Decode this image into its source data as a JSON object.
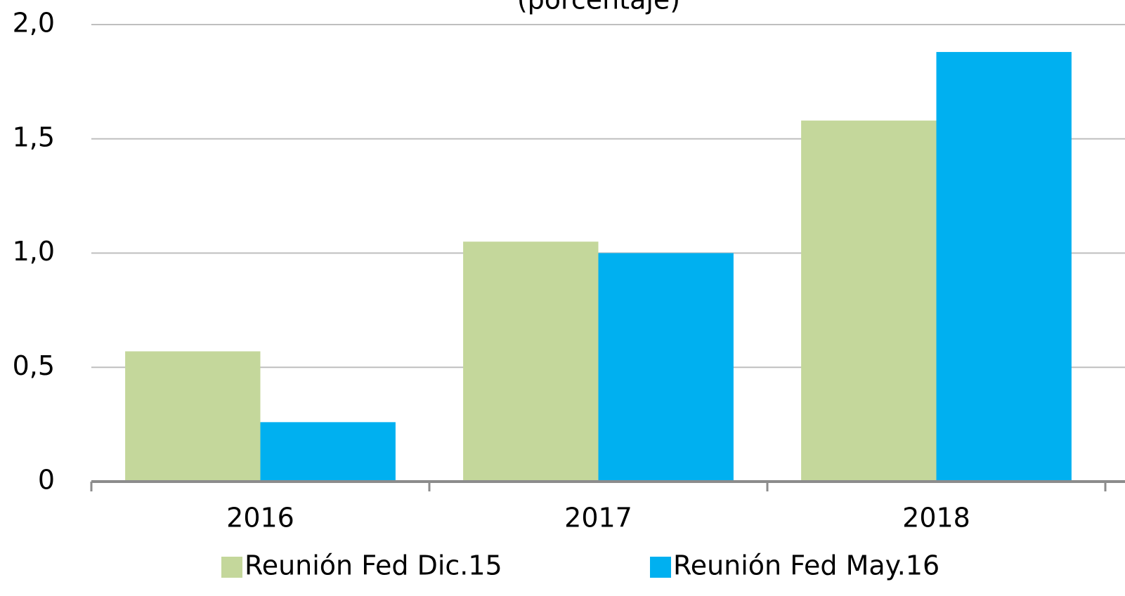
{
  "chart_data": {
    "type": "bar",
    "subtitle": "(porcentaje)",
    "categories": [
      "2016",
      "2017",
      "2018"
    ],
    "series": [
      {
        "name": "Reunión Fed Dic.15",
        "color": "#c4d79b",
        "values": [
          0.57,
          1.05,
          1.58
        ]
      },
      {
        "name": "Reunión Fed May.16",
        "color": "#00b0f0",
        "values": [
          0.26,
          1.0,
          1.88
        ]
      }
    ],
    "ylim": [
      0,
      2.0
    ],
    "yticks": [
      0,
      {
        "value": 0.5,
        "label": "0,5"
      },
      {
        "value": 1.0,
        "label": "1,0"
      },
      {
        "value": 1.5,
        "label": "1,5"
      },
      {
        "value": 2.0,
        "label": "2,0"
      }
    ],
    "grid": true
  }
}
